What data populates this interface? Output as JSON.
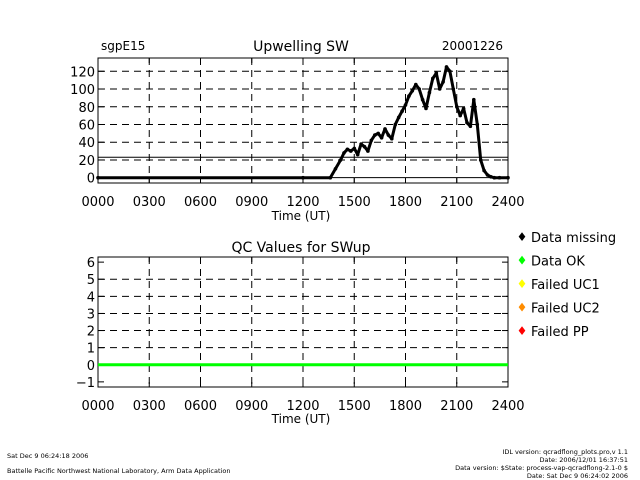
{
  "chart_data": [
    {
      "type": "scatter",
      "site": "sgpE15",
      "title": "Upwelling SW",
      "date": "20001226",
      "xlabel": "Time (UT)",
      "ylabel": "",
      "xlim": [
        0,
        2400
      ],
      "ylim": [
        -6,
        135
      ],
      "x_ticks": [
        "0000",
        "0300",
        "0600",
        "0900",
        "1200",
        "1500",
        "1800",
        "2100",
        "2400"
      ],
      "y_ticks": [
        "0",
        "20",
        "40",
        "60",
        "80",
        "100",
        "120"
      ],
      "dashed_lines_y": [
        20,
        40,
        60,
        80,
        100,
        120
      ],
      "solid_lines_y": [
        0,
        23,
        140
      ],
      "grid": true,
      "series": [
        {
          "color": "#000000",
          "x": [
            0,
            1200,
            1360,
            1390,
            1420,
            1440,
            1460,
            1480,
            1500,
            1520,
            1540,
            1560,
            1580,
            1600,
            1620,
            1640,
            1660,
            1680,
            1700,
            1720,
            1740,
            1760,
            1780,
            1800,
            1820,
            1840,
            1860,
            1880,
            1900,
            1920,
            1940,
            1960,
            1980,
            2000,
            2020,
            2040,
            2060,
            2080,
            2100,
            2120,
            2140,
            2160,
            2180,
            2200,
            2220,
            2240,
            2260,
            2280,
            2300,
            2320,
            2350,
            2400
          ],
          "y": [
            0,
            0,
            0,
            10,
            20,
            28,
            32,
            30,
            33,
            26,
            38,
            35,
            30,
            42,
            48,
            50,
            45,
            55,
            48,
            44,
            60,
            68,
            75,
            82,
            92,
            98,
            105,
            100,
            88,
            78,
            96,
            112,
            118,
            100,
            108,
            125,
            120,
            100,
            80,
            70,
            78,
            62,
            58,
            88,
            60,
            20,
            8,
            3,
            1,
            0,
            0,
            0
          ]
        }
      ]
    },
    {
      "type": "line",
      "title": "QC Values for SWup",
      "xlabel": "Time (UT)",
      "ylabel": "",
      "xlim": [
        0,
        2400
      ],
      "ylim": [
        -1.3,
        6.3
      ],
      "x_ticks": [
        "0000",
        "0300",
        "0600",
        "0900",
        "1200",
        "1500",
        "1800",
        "2100",
        "2400"
      ],
      "y_ticks": [
        "-1",
        "0",
        "1",
        "2",
        "3",
        "4",
        "5",
        "6"
      ],
      "dashed_lines_y": [
        1,
        2,
        3,
        4,
        5
      ],
      "grid": true,
      "series": [
        {
          "color": "#00ff00",
          "x": [
            0,
            2400
          ],
          "y": [
            0,
            0
          ]
        }
      ],
      "legend": {
        "placement": "right",
        "entries": [
          {
            "label": "Data missing",
            "color": "#000000"
          },
          {
            "label": "Data OK",
            "color": "#00ff00"
          },
          {
            "label": "Failed UC1",
            "color": "#ffff00"
          },
          {
            "label": "Failed UC2",
            "color": "#ff8c00"
          },
          {
            "label": "Failed PP",
            "color": "#ff0000"
          }
        ]
      }
    }
  ],
  "footer": {
    "left_line1": "Sat Dec  9 06:24:18 2006",
    "left_line2": "Battelle Pacific Northwest National Laboratory, Arm Data Application",
    "right_line1": "IDL version: qcradflong_plots.pro,v 1.1",
    "right_line2": "Date: 2006/12/01 16:37:51",
    "right_line3": "Data version: $State: process-vap-qcradflong-2.1-0 $",
    "right_line4": "Date: Sat Dec  9 06:24:02 2006"
  }
}
